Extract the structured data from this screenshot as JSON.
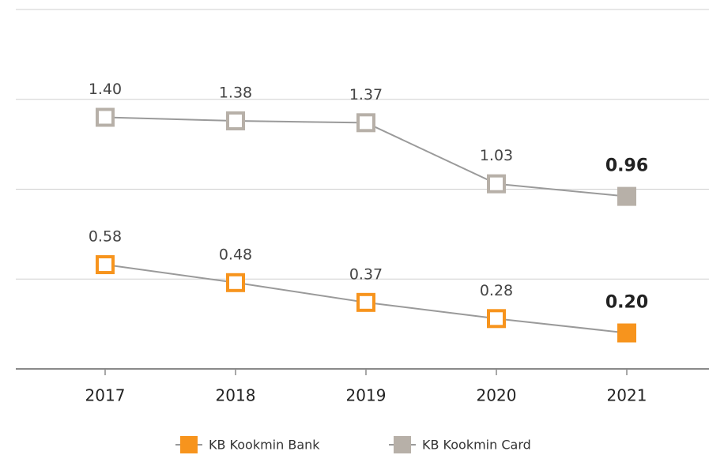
{
  "chart_data": {
    "type": "line",
    "categories": [
      "2017",
      "2018",
      "2019",
      "2020",
      "2021"
    ],
    "series": [
      {
        "name": "KB Kookmin Bank",
        "color": "#f7941d",
        "values": [
          0.58,
          0.48,
          0.37,
          0.28,
          0.2
        ],
        "value_labels": [
          "0.58",
          "0.48",
          "0.37",
          "0.28",
          "0.20"
        ]
      },
      {
        "name": "KB Kookmin Card",
        "color": "#b7b0a8",
        "values": [
          1.4,
          1.38,
          1.37,
          1.03,
          0.96
        ],
        "value_labels": [
          "1.40",
          "1.38",
          "1.37",
          "1.03",
          "0.96"
        ]
      }
    ],
    "line_color": "#9a9a9a",
    "ylim": [
      0,
      2
    ],
    "yticks": [
      0,
      0.5,
      1,
      1.5,
      2
    ],
    "grid": true
  }
}
